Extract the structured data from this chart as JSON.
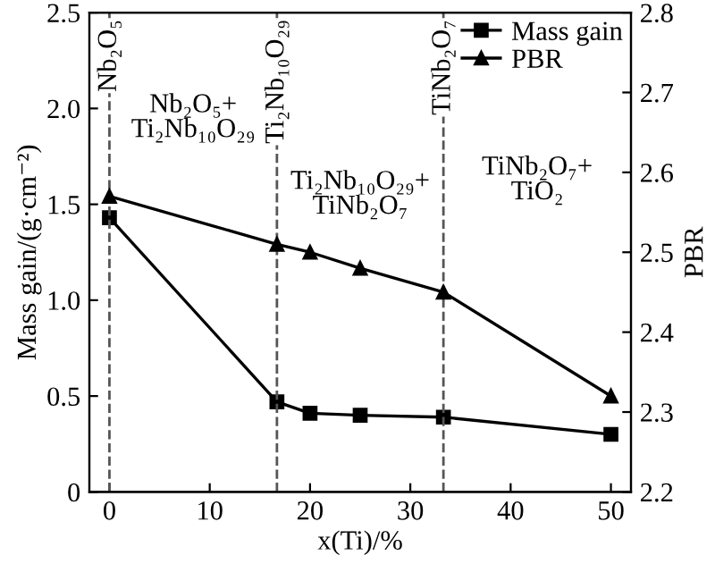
{
  "chart_data": {
    "type": "line",
    "xlabel": "x(Ti)/%",
    "ylabel": "Mass gain/(g·cm⁻²)",
    "y2label": "PBR",
    "x": [
      0,
      16.7,
      20,
      25,
      33.3,
      50
    ],
    "series": [
      {
        "name": "Mass gain",
        "color": "#000000",
        "marker": "square",
        "values": [
          1.43,
          0.47,
          0.41,
          0.4,
          0.39,
          0.3
        ]
      },
      {
        "name": "PBR",
        "color": "#000000",
        "marker": "triangle",
        "axis": "y2",
        "values": [
          2.57,
          2.51,
          2.5,
          2.48,
          2.45,
          2.32
        ]
      }
    ],
    "xlim": [
      -2,
      52
    ],
    "xticks": [
      0,
      10,
      20,
      30,
      40,
      50
    ],
    "ylim": [
      0,
      2.5
    ],
    "yticks": [
      0,
      0.5,
      {
        "value": 1,
        "label": "1.0"
      },
      1.5,
      {
        "value": 2,
        "label": "2.0"
      },
      2.5
    ],
    "y2lim": [
      2.2,
      2.8
    ],
    "y2ticks": [
      2.2,
      2.3,
      2.4,
      2.5,
      2.6,
      2.7,
      2.8
    ],
    "ref_lines": [
      {
        "axis": "x",
        "value": 0,
        "label": "Nb₂O₅",
        "line_style": "dashed",
        "color": "#555555"
      },
      {
        "axis": "x",
        "value": 16.7,
        "label": "Ti₂Nb₁₀O₂₉",
        "line_style": "dashed",
        "color": "#555555"
      },
      {
        "axis": "x",
        "value": 33.3,
        "label": "TiNb₂O₇",
        "line_style": "dashed",
        "color": "#555555"
      }
    ],
    "annotations": [
      "Nb₂O₅+\nTi₂Nb₁₀O₂₉",
      "Ti₂Nb₁₀O₂₉+\nTiNb₂O₇",
      "TiNb₂O₇+\nTiO₂"
    ],
    "legend": "top right",
    "grid": false
  }
}
